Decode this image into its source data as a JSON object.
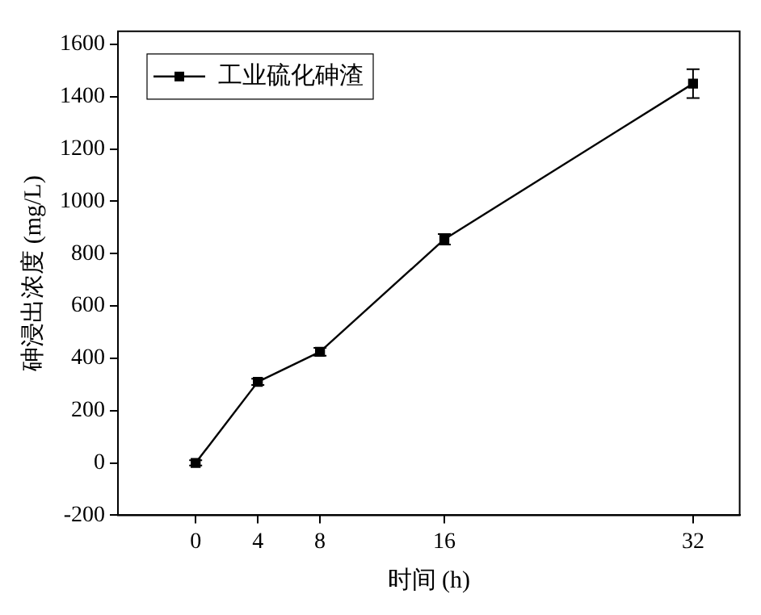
{
  "chart_data": {
    "type": "line",
    "xlabel": "时间 (h)",
    "ylabel": "砷浸出浓度 (mg/L)",
    "x": [
      0,
      4,
      8,
      16,
      32
    ],
    "series": [
      {
        "name": "工业硫化砷渣",
        "color": "#000000",
        "values": [
          0,
          310,
          425,
          855,
          1450
        ],
        "errors": [
          10,
          12,
          15,
          20,
          55
        ]
      }
    ],
    "xlim": [
      -5,
      35
    ],
    "xticks": [
      0,
      4,
      8,
      16,
      32
    ],
    "ylim": [
      -200,
      1650
    ],
    "yticks": [
      -200,
      0,
      200,
      400,
      600,
      800,
      1000,
      1200,
      1400,
      1600
    ],
    "grid": false,
    "legend": "top left",
    "marker": "square",
    "line_style": "solid"
  }
}
